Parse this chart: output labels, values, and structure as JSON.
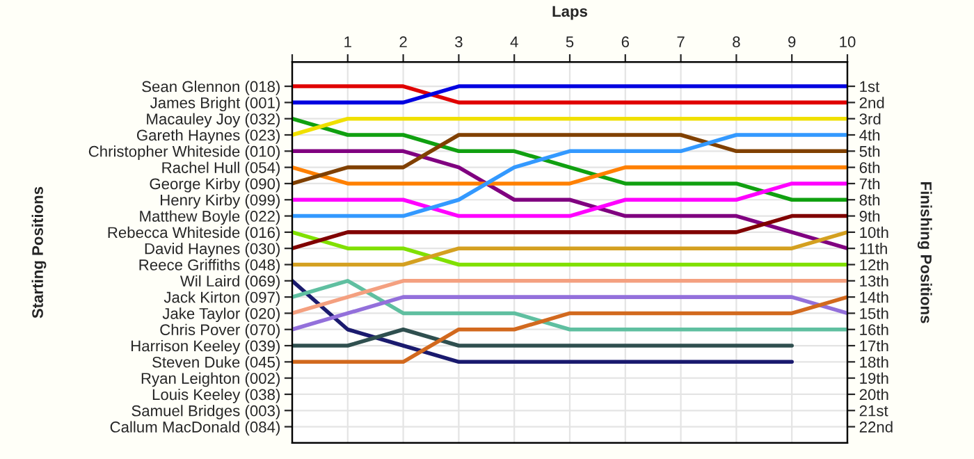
{
  "chart_data": {
    "type": "line",
    "xlabel": "Laps",
    "annotations": [
      "Starting Positions"
    ],
    "y2label": "Finishing Positions",
    "xlim": [
      0,
      10
    ],
    "xticks": [
      {
        "value": 0,
        "label": null
      },
      1,
      2,
      3,
      4,
      5,
      6,
      7,
      8,
      9,
      10
    ],
    "y_categories": [
      "Sean Glennon (018)",
      "James Bright (001)",
      "Macauley Joy (032)",
      "Gareth Haynes (023)",
      "Christopher Whiteside (010)",
      "Rachel Hull (054)",
      "George Kirby (090)",
      "Henry Kirby (099)",
      "Matthew Boyle (022)",
      "Rebecca Whiteside (016)",
      "David Haynes (030)",
      "Reece Griffiths (048)",
      "Wil Laird (069)",
      "Jack Kirton (097)",
      "Jake Taylor (020)",
      "Chris Pover (070)",
      "Harrison Keeley (039)",
      "Steven Duke (045)",
      "Ryan Leighton (002)",
      "Louis Keeley (038)",
      "Samuel Bridges (003)",
      "Callum MacDonald (084)"
    ],
    "y2lim": [
      23,
      -0.5
    ],
    "y2ticks": [
      {
        "value": 1,
        "label": "1st"
      },
      {
        "value": 2,
        "label": "2nd"
      },
      {
        "value": 3,
        "label": "3rd"
      },
      {
        "value": 4,
        "label": "4th"
      },
      {
        "value": 5,
        "label": "5th"
      },
      {
        "value": 6,
        "label": "6th"
      },
      {
        "value": 7,
        "label": "7th"
      },
      {
        "value": 8,
        "label": "8th"
      },
      {
        "value": 9,
        "label": "9th"
      },
      {
        "value": 10,
        "label": "10th"
      },
      {
        "value": 11,
        "label": "11th"
      },
      {
        "value": 12,
        "label": "12th"
      },
      {
        "value": 13,
        "label": "13th"
      },
      {
        "value": 14,
        "label": "14th"
      },
      {
        "value": 15,
        "label": "15th"
      },
      {
        "value": 16,
        "label": "16th"
      },
      {
        "value": 17,
        "label": "17th"
      },
      {
        "value": 18,
        "label": "18th"
      },
      {
        "value": 19,
        "label": "19th"
      },
      {
        "value": 20,
        "label": "20th"
      },
      {
        "value": 21,
        "label": "21st"
      },
      {
        "value": 22,
        "label": "22nd"
      }
    ],
    "grid": true,
    "marker": "none",
    "line_style": "solid",
    "x": [
      0,
      1,
      2,
      3,
      4,
      5,
      6,
      7,
      8,
      9,
      10
    ],
    "series": [
      {
        "axis": "y2",
        "color": "#e00000",
        "values": [
          1,
          1,
          1,
          2,
          2,
          2,
          2,
          2,
          2,
          2,
          2
        ]
      },
      {
        "axis": "y2",
        "color": "#0000e0",
        "values": [
          2,
          2,
          2,
          1,
          1,
          1,
          1,
          1,
          1,
          1,
          1
        ]
      },
      {
        "axis": "y2",
        "color": "#10a010",
        "values": [
          3,
          4,
          4,
          5,
          5,
          6,
          7,
          7,
          7,
          8,
          8
        ]
      },
      {
        "axis": "y2",
        "color": "#f0e000",
        "values": [
          4,
          3,
          3,
          3,
          3,
          3,
          3,
          3,
          3,
          3,
          3
        ]
      },
      {
        "axis": "y2",
        "color": "#800080",
        "values": [
          5,
          5,
          5,
          6,
          8,
          8,
          9,
          9,
          9,
          10,
          11
        ]
      },
      {
        "axis": "y2",
        "color": "#ff8000",
        "values": [
          6,
          7,
          7,
          7,
          7,
          7,
          6,
          6,
          6,
          6,
          6
        ]
      },
      {
        "axis": "y2",
        "color": "#804000",
        "values": [
          7,
          6,
          6,
          4,
          4,
          4,
          4,
          4,
          5,
          5,
          5
        ]
      },
      {
        "axis": "y2",
        "color": "#ff00ff",
        "values": [
          8,
          8,
          8,
          9,
          9,
          9,
          8,
          8,
          8,
          7,
          7
        ]
      },
      {
        "axis": "y2",
        "color": "#3399ff",
        "values": [
          9,
          9,
          9,
          8,
          6,
          5,
          5,
          5,
          4,
          4,
          4
        ]
      },
      {
        "axis": "y2",
        "color": "#80e000",
        "values": [
          10,
          11,
          11,
          12,
          12,
          12,
          12,
          12,
          12,
          12,
          12
        ]
      },
      {
        "axis": "y2",
        "color": "#800000",
        "values": [
          11,
          10,
          10,
          10,
          10,
          10,
          10,
          10,
          10,
          9,
          9
        ]
      },
      {
        "axis": "y2",
        "color": "#d4a020",
        "values": [
          12,
          12,
          12,
          11,
          11,
          11,
          11,
          11,
          11,
          11,
          10
        ]
      },
      {
        "axis": "y2",
        "color": "#1a1a6e",
        "values": [
          13,
          16,
          17,
          18,
          18,
          18,
          18,
          18,
          18,
          18,
          null
        ]
      },
      {
        "axis": "y2",
        "color": "#5fbfa0",
        "values": [
          14,
          13,
          15,
          15,
          15,
          16,
          16,
          16,
          16,
          16,
          16
        ]
      },
      {
        "axis": "y2",
        "color": "#f4a080",
        "values": [
          15,
          14,
          13,
          13,
          13,
          13,
          13,
          13,
          13,
          13,
          13
        ]
      },
      {
        "axis": "y2",
        "color": "#9370db",
        "values": [
          16,
          15,
          14,
          14,
          14,
          14,
          14,
          14,
          14,
          14,
          15
        ]
      },
      {
        "axis": "y2",
        "color": "#2f4f4f",
        "values": [
          17,
          17,
          16,
          17,
          17,
          17,
          17,
          17,
          17,
          17,
          null
        ]
      },
      {
        "axis": "y2",
        "color": "#d2691e",
        "values": [
          18,
          18,
          18,
          16,
          16,
          15,
          15,
          15,
          15,
          15,
          14
        ]
      }
    ]
  }
}
